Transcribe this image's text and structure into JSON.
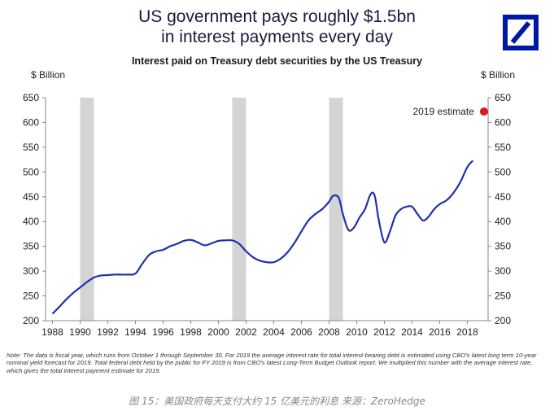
{
  "title_line1": "US government pays roughly $1.5bn",
  "title_line2": "in interest payments every day",
  "subtitle": "Interest paid on Treasury debt securities by the US Treasury",
  "logo": "Deutsche Bank logo",
  "note": "Note: The data is fiscal year, which runs from October 1 through September 30. For 2019 the average interest rate for total interest-bearing debt is estimated using CBO's latest long term 10-year nominal yield forecast for 2019. Total federal debt held by the public for FY 2019 is from CBO's latest Long-Term Budget Outlook report. We multiplied this number with the average interest rate, which gives the total interest payment estimate for 2019.",
  "caption": "图 15：美国政府每天支付大约 15 亿美元的利息  来源：ZeroHedge",
  "colors": {
    "line": "#1f2fb0",
    "estimate": "#e0161c",
    "recession": "#d4d4d4",
    "axis": "#888888",
    "title": "#1a1a3a"
  },
  "chart_data": {
    "type": "line",
    "ylabel_left": "$ Billion",
    "ylabel_right": "$ Billion",
    "ylim": [
      200,
      650
    ],
    "xlim": [
      1987.5,
      2019.5
    ],
    "yticks": [
      200,
      250,
      300,
      350,
      400,
      450,
      500,
      550,
      600,
      650
    ],
    "xticks": [
      1988,
      1990,
      1992,
      1994,
      1996,
      1998,
      2000,
      2002,
      2004,
      2006,
      2008,
      2010,
      2012,
      2014,
      2016,
      2018
    ],
    "grid": false,
    "recession_bands": [
      [
        1990.0,
        1991.0
      ],
      [
        2001.0,
        2002.0
      ],
      [
        2008.0,
        2009.0
      ]
    ],
    "series": [
      {
        "x": [
          1988,
          1988.5,
          1989,
          1989.5,
          1990,
          1990.5,
          1991,
          1991.5,
          1992,
          1992.5,
          1993,
          1993.5,
          1994,
          1994.5,
          1995,
          1995.5,
          1996,
          1996.5,
          1997,
          1997.5,
          1998,
          1998.5,
          1999,
          1999.5,
          2000,
          2000.5,
          2001,
          2001.5,
          2002,
          2002.5,
          2003,
          2003.5,
          2004,
          2004.5,
          2005,
          2005.5,
          2006,
          2006.5,
          2007,
          2007.5,
          2008,
          2008.3,
          2008.7,
          2009,
          2009.4,
          2009.8,
          2010.2,
          2010.6,
          2011,
          2011.3,
          2011.6,
          2012,
          2012.4,
          2012.8,
          2013.2,
          2013.6,
          2014,
          2014.4,
          2014.8,
          2015.2,
          2015.6,
          2016,
          2016.5,
          2017,
          2017.5,
          2018,
          2018.4
        ],
        "values": [
          214,
          228,
          243,
          256,
          267,
          278,
          287,
          291,
          292,
          293,
          293,
          293,
          295,
          315,
          333,
          340,
          343,
          350,
          355,
          361,
          363,
          358,
          352,
          356,
          361,
          362,
          362,
          355,
          340,
          328,
          321,
          318,
          318,
          325,
          338,
          357,
          380,
          402,
          415,
          425,
          440,
          452,
          448,
          415,
          383,
          388,
          408,
          425,
          455,
          452,
          402,
          358,
          380,
          412,
          425,
          430,
          430,
          415,
          402,
          410,
          425,
          435,
          443,
          458,
          480,
          510,
          523
        ]
      }
    ],
    "annotation": {
      "label": "2019 estimate",
      "x": 2019.2,
      "y": 622
    }
  }
}
